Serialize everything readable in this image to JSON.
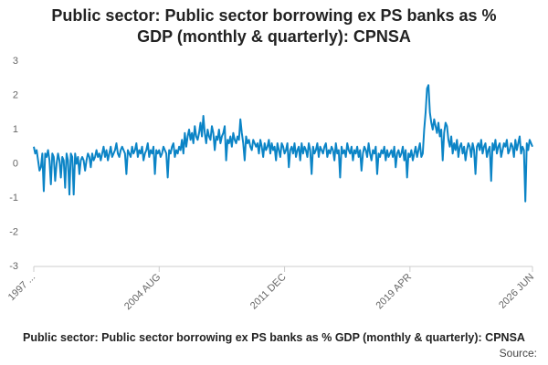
{
  "chart_data": {
    "type": "line",
    "title": "Public sector: Public sector borrowing ex PS banks as % GDP (monthly & quarterly): CPNSA",
    "caption": "Public sector: Public sector borrowing ex PS banks as % GDP (monthly & quarterly): CPNSA",
    "source": "Source:",
    "ylim": [
      -3,
      3
    ],
    "yticks": [
      -3,
      -2,
      -1,
      0,
      1,
      2,
      3
    ],
    "grid": false,
    "categories": [
      "1997 ...",
      null,
      null,
      null,
      null,
      null,
      null,
      null,
      null,
      null,
      null,
      null,
      null,
      null,
      null,
      null,
      null,
      null,
      null,
      null,
      null,
      null,
      null,
      null,
      null,
      null,
      null,
      null,
      null,
      null,
      null,
      null,
      null,
      null,
      null,
      null,
      null,
      null,
      null,
      null,
      null,
      null,
      null,
      null,
      null,
      null,
      null,
      null,
      null,
      null,
      null,
      null,
      null,
      null,
      null,
      null,
      null,
      null,
      null,
      null,
      null,
      null,
      null,
      null,
      null,
      null,
      null,
      null,
      null,
      null,
      null,
      null,
      null,
      null,
      null,
      null,
      null,
      null,
      null,
      null,
      null,
      null,
      null,
      null,
      null,
      null,
      null,
      null,
      "2004 AUG",
      null,
      null,
      null,
      null,
      null,
      null,
      null,
      null,
      null,
      null,
      null,
      null,
      null,
      null,
      null,
      null,
      null,
      null,
      null,
      null,
      null,
      null,
      null,
      null,
      null,
      null,
      null,
      null,
      null,
      null,
      null,
      null,
      null,
      null,
      null,
      null,
      null,
      null,
      null,
      null,
      null,
      null,
      null,
      null,
      null,
      null,
      null,
      null,
      null,
      null,
      null,
      null,
      null,
      null,
      null,
      null,
      null,
      null,
      null,
      null,
      null,
      null,
      null,
      null,
      null,
      null,
      null,
      null,
      null,
      null,
      null,
      null,
      null,
      null,
      null,
      null,
      null,
      null,
      null,
      null,
      null,
      null,
      null,
      null,
      null,
      null,
      null,
      "2011 DEC",
      null,
      null,
      null,
      null,
      null,
      null,
      null,
      null,
      null,
      null,
      null,
      null,
      null,
      null,
      null,
      null,
      null,
      null,
      null,
      null,
      null,
      null,
      null,
      null,
      null,
      null,
      null,
      null,
      null,
      null,
      null,
      null,
      null,
      null,
      null,
      null,
      null,
      null,
      null,
      null,
      null,
      null,
      null,
      null,
      null,
      null,
      null,
      null,
      null,
      null,
      null,
      null,
      null,
      null,
      null,
      null,
      null,
      null,
      null,
      null,
      null,
      null,
      null,
      null,
      null,
      null,
      null,
      null,
      null,
      null,
      null,
      null,
      null,
      null,
      null,
      null,
      null,
      null,
      null,
      null,
      null,
      null,
      null,
      null,
      null,
      null,
      null,
      "2019 APR",
      null,
      null,
      null,
      null,
      null,
      null,
      null,
      null,
      null,
      null,
      null,
      null,
      null,
      null,
      null,
      null,
      null,
      null,
      null,
      null,
      null,
      null,
      null,
      null,
      null,
      null,
      null,
      null,
      null,
      null,
      null,
      null,
      null,
      null,
      null,
      null,
      null,
      null,
      null,
      null,
      null,
      null,
      null,
      null,
      null,
      null,
      null,
      null,
      null,
      null,
      null,
      null,
      null,
      null,
      null,
      null,
      null,
      null,
      null,
      null,
      null,
      null,
      null,
      null,
      null,
      null,
      null,
      null,
      null,
      null,
      null,
      null,
      null,
      null,
      null,
      null,
      null,
      null,
      null,
      null,
      null,
      null,
      null,
      null,
      null,
      "2026 JUN"
    ],
    "series": [
      {
        "color": "#0b84c6",
        "values": [
          0.5,
          0.3,
          0.4,
          0.1,
          -0.2,
          -0.1,
          0.3,
          -0.8,
          0.3,
          0.2,
          0.4,
          0.1,
          -0.6,
          0.3,
          0.2,
          -0.5,
          0.0,
          0.3,
          0.1,
          -0.4,
          0.2,
          0.1,
          -0.7,
          0.3,
          0.1,
          -0.9,
          0.3,
          0.2,
          -0.9,
          0.3,
          0.0,
          0.2,
          -0.3,
          0.1,
          0.2,
          0.1,
          -0.2,
          0.1,
          0.3,
          0.2,
          -0.1,
          0.3,
          0.1,
          0.2,
          0.4,
          0.2,
          0.3,
          0.1,
          0.3,
          0.5,
          0.2,
          0.4,
          0.1,
          0.3,
          0.5,
          0.2,
          0.3,
          0.4,
          0.6,
          0.3,
          0.2,
          0.4,
          0.5,
          0.4,
          0.3,
          -0.3,
          0.4,
          0.3,
          0.2,
          0.5,
          0.3,
          0.4,
          0.6,
          0.2,
          0.4,
          0.3,
          0.5,
          0.1,
          0.3,
          0.4,
          0.6,
          0.2,
          0.4,
          0.3,
          0.5,
          -0.3,
          0.4,
          0.3,
          0.4,
          0.2,
          0.3,
          0.5,
          0.4,
          0.3,
          -0.4,
          0.4,
          0.3,
          0.5,
          0.6,
          0.2,
          0.4,
          0.3,
          0.5,
          0.4,
          0.7,
          0.3,
          0.9,
          0.5,
          0.8,
          1.0,
          0.7,
          0.9,
          0.6,
          1.1,
          0.8,
          0.7,
          0.9,
          1.2,
          0.8,
          1.4,
          0.9,
          0.6,
          1.0,
          0.8,
          0.7,
          1.1,
          0.9,
          0.4,
          0.8,
          0.7,
          1.0,
          0.6,
          0.8,
          0.9,
          1.1,
          0.1,
          0.7,
          0.6,
          0.8,
          0.5,
          0.9,
          0.7,
          0.6,
          0.8,
          0.7,
          1.3,
          0.9,
          0.6,
          0.1,
          0.8,
          0.6,
          0.7,
          0.5,
          0.4,
          0.7,
          0.6,
          0.5,
          0.6,
          0.3,
          0.7,
          0.5,
          0.2,
          0.6,
          0.4,
          0.5,
          0.7,
          0.3,
          0.6,
          0.4,
          0.5,
          0.1,
          0.6,
          0.4,
          0.2,
          0.6,
          0.5,
          0.3,
          0.4,
          0.6,
          -0.1,
          0.4,
          0.5,
          0.3,
          0.6,
          0.2,
          0.4,
          0.5,
          0.1,
          0.6,
          0.3,
          0.5,
          0.4,
          0.2,
          0.6,
          0.4,
          -0.3,
          0.5,
          0.3,
          0.4,
          0.6,
          0.2,
          0.5,
          0.4,
          0.3,
          0.5,
          0.6,
          0.2,
          0.4,
          0.3,
          0.5,
          0.4,
          0.1,
          0.6,
          0.3,
          0.4,
          -0.4,
          0.5,
          0.3,
          0.4,
          0.2,
          0.6,
          0.4,
          0.3,
          0.5,
          0.1,
          0.4,
          0.3,
          0.5,
          0.2,
          0.4,
          -0.2,
          0.3,
          0.5,
          0.4,
          0.2,
          0.6,
          0.3,
          0.1,
          0.4,
          0.3,
          0.5,
          -0.3,
          0.3,
          0.2,
          0.4,
          0.3,
          0.5,
          0.1,
          0.4,
          0.2,
          0.3,
          0.4,
          0.2,
          0.5,
          -0.1,
          0.3,
          0.4,
          0.2,
          0.3,
          0.5,
          0.1,
          0.4,
          -0.4,
          0.3,
          0.2,
          0.4,
          0.1,
          0.3,
          0.5,
          0.2,
          0.4,
          0.6,
          0.2,
          0.3,
          1.0,
          1.5,
          2.2,
          2.3,
          1.5,
          1.2,
          1.0,
          1.3,
          1.1,
          0.9,
          1.2,
          0.8,
          1.0,
          0.1,
          0.9,
          1.2,
          1.1,
          0.7,
          0.5,
          0.8,
          0.3,
          0.6,
          0.4,
          0.7,
          0.2,
          0.5,
          0.6,
          0.3,
          0.5,
          0.1,
          0.4,
          0.6,
          0.5,
          0.2,
          0.6,
          0.4,
          -0.3,
          0.5,
          0.6,
          0.4,
          0.7,
          0.3,
          0.5,
          0.6,
          0.2,
          0.4,
          0.5,
          -0.5,
          0.6,
          0.4,
          0.7,
          0.3,
          0.5,
          0.6,
          0.2,
          0.4,
          0.6,
          0.5,
          0.7,
          0.3,
          0.4,
          0.6,
          0.5,
          0.2,
          0.7,
          0.4,
          0.6,
          0.8,
          0.3,
          0.5,
          0.4,
          -1.1,
          0.6,
          0.4,
          0.7,
          0.6,
          0.5
        ]
      }
    ]
  }
}
